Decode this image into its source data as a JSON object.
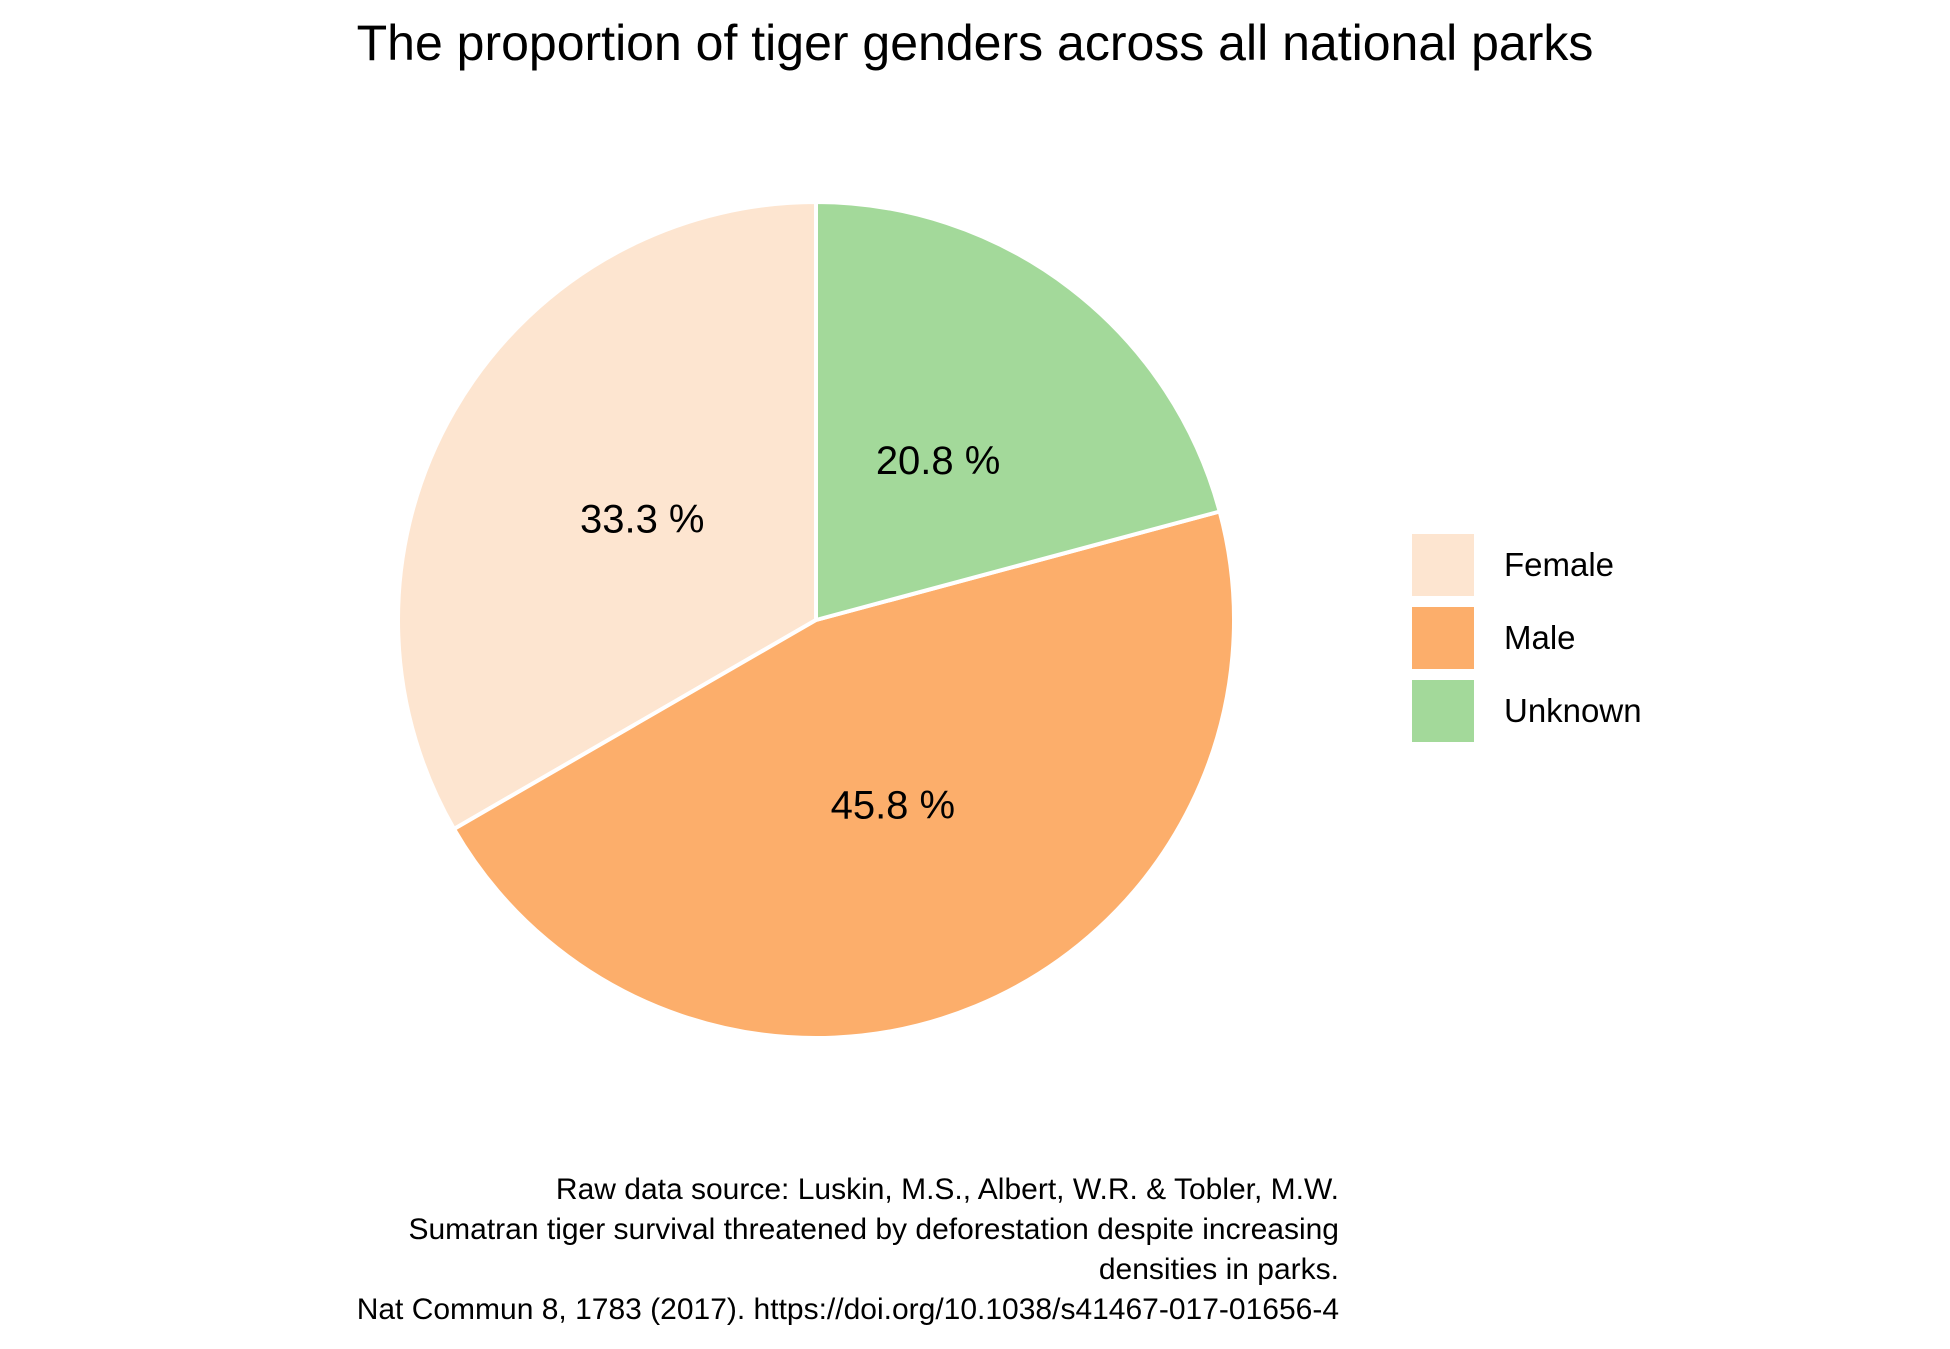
{
  "chart_data": {
    "type": "pie",
    "title": "The proportion of tiger genders across all national parks",
    "categories": [
      "Female",
      "Male",
      "Unknown"
    ],
    "values": [
      33.3,
      45.8,
      20.8
    ],
    "value_labels": [
      "33.3 %",
      "45.8 %",
      "20.8 %"
    ],
    "colors": [
      "#fde5d0",
      "#fcae6b",
      "#a3d99a"
    ],
    "legend_position": "right",
    "start_angle": "12 o'clock",
    "direction": "counter-clockwise from top for Female"
  },
  "legend": {
    "items": [
      {
        "label": "Female",
        "color": "#fde5d0"
      },
      {
        "label": "Male",
        "color": "#fcae6b"
      },
      {
        "label": "Unknown",
        "color": "#a3d99a"
      }
    ]
  },
  "caption": {
    "lines": [
      "Raw data source: Luskin, M.S., Albert, W.R. & Tobler, M.W.",
      "Sumatran tiger survival threatened by deforestation despite increasing",
      "densities in parks.",
      "Nat Commun 8, 1783 (2017). https://doi.org/10.1038/s41467-017-01656-4"
    ]
  }
}
